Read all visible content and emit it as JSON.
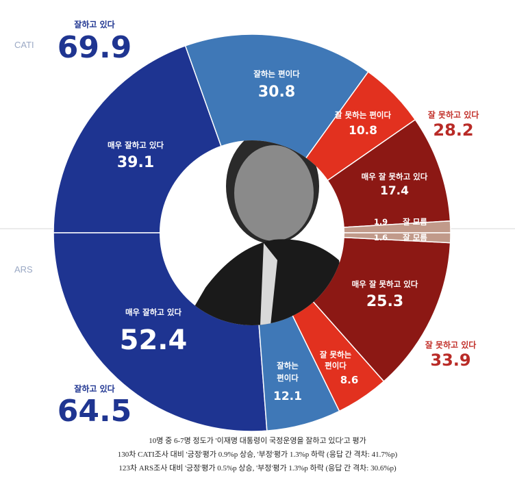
{
  "chart_data": {
    "type": "pie",
    "charts": [
      {
        "survey": "CATI",
        "total_positive_label": "잘하고 있다",
        "total_positive": 69.9,
        "total_negative_label": "잘 못하고 있다",
        "total_negative": 28.2,
        "slices": [
          {
            "label": "매우 잘하고 있다",
            "value": 39.1,
            "color": "#1e3491"
          },
          {
            "label": "잘하는 편이다",
            "value": 30.8,
            "color": "#3f78b7"
          },
          {
            "label": "잘 못하는 편이다",
            "value": 10.8,
            "color": "#e2311f"
          },
          {
            "label": "매우 잘 못하고 있다",
            "value": 17.4,
            "color": "#8c1814"
          },
          {
            "label": "잘 모름",
            "value": 1.9,
            "color": "#c19a8a"
          }
        ]
      },
      {
        "survey": "ARS",
        "total_positive_label": "잘하고 있다",
        "total_positive": 64.5,
        "total_negative_label": "잘 못하고 있다",
        "total_negative": 33.9,
        "slices": [
          {
            "label": "매우 잘하고 있다",
            "value": 52.4,
            "color": "#1e3491"
          },
          {
            "label": "잘하는 편이다",
            "value": 12.1,
            "color": "#3f78b7"
          },
          {
            "label": "잘 못하는 편이다",
            "value": 8.6,
            "color": "#e2311f"
          },
          {
            "label": "매우 잘 못하고 있다",
            "value": 25.3,
            "color": "#8c1814"
          },
          {
            "label": "잘 모름",
            "value": 1.6,
            "color": "#c19a8a"
          }
        ]
      }
    ]
  },
  "labels": {
    "cati": "CATI",
    "ars": "ARS",
    "cati_pos_label": "잘하고 있다",
    "cati_pos_value": "69.9",
    "cati_neg_label": "잘 못하고 있다",
    "cati_neg_value": "28.2",
    "ars_pos_label": "잘하고 있다",
    "ars_pos_value": "64.5",
    "ars_neg_label": "잘 못하고 있다",
    "ars_neg_value": "33.9",
    "cati_s1_label": "매우 잘하고 있다",
    "cati_s1_value": "39.1",
    "cati_s2_label": "잘하는 편이다",
    "cati_s2_value": "30.8",
    "cati_s3_label": "잘 못하는 편이다",
    "cati_s3_value": "10.8",
    "cati_s4_label": "매우 잘 못하고 있다",
    "cati_s4_value": "17.4",
    "cati_s5_label": "잘 모름",
    "cati_s5_value": "1.9",
    "ars_s1_label": "매우 잘하고 있다",
    "ars_s1_value": "52.4",
    "ars_s2_label_1": "잘하는",
    "ars_s2_label_2": "편이다",
    "ars_s2_value": "12.1",
    "ars_s3_label_1": "잘 못하는",
    "ars_s3_label_2": "편이다",
    "ars_s3_value": "8.6",
    "ars_s4_label": "매우 잘 못하고 있다",
    "ars_s4_value": "25.3",
    "ars_s5_label": "잘 모름",
    "ars_s5_value": "1.6"
  },
  "footnotes": [
    "10명 중 6-7명 정도가 '이재명 대통령이 국정운영을 잘하고 있다'고 평가",
    "130차 CATI조사 대비 '긍정'평가 0.9%p 상승, '부정'평가 1.3%p 하락 (응답 간 격차: 41.7%p)",
    "123차 ARS조사 대비 '긍정'평가 0.5%p 상승, '부정'평가 1.3%p 하락 (응답 간 격차: 30.6%p)"
  ],
  "colors": {
    "strong_positive": "#1e3491",
    "positive": "#3f78b7",
    "negative": "#e2311f",
    "strong_negative": "#8c1814",
    "unknown": "#c19a8a",
    "total_positive_text": "#1f3591",
    "total_negative_text": "#b92b27"
  }
}
